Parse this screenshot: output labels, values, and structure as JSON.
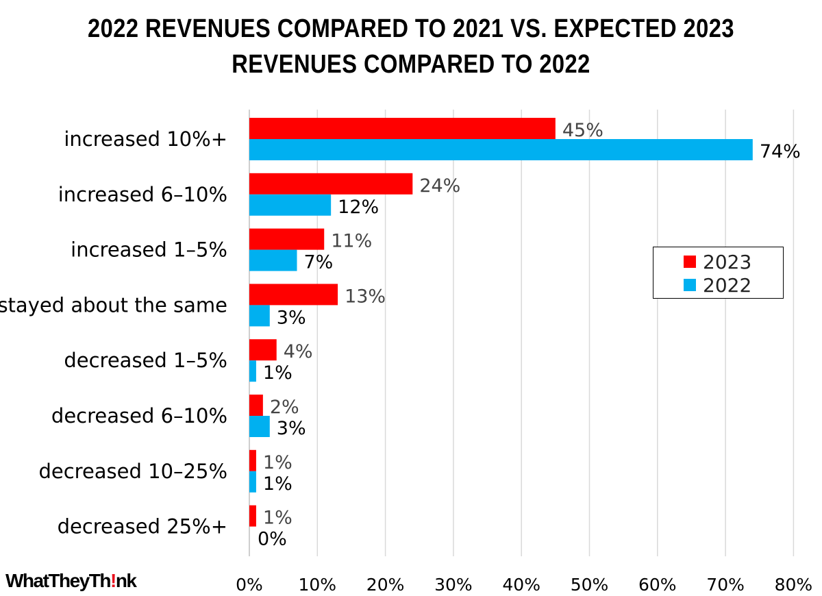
{
  "chart_data": {
    "type": "bar",
    "orientation": "horizontal",
    "title_lines": [
      "2022 REVENUES COMPARED TO 2021 VS. EXPECTED 2023",
      "REVENUES COMPARED TO 2022"
    ],
    "categories": [
      "increased 10%+",
      "increased 6-10%",
      "increased 1-5%",
      "stayed about the same",
      "decreased 1-5%",
      "decreased 6-10%",
      "decreased 10-25%",
      "decreased 25%+"
    ],
    "series": [
      {
        "name": "2023",
        "color": "#ff0000",
        "values": [
          45,
          24,
          11,
          13,
          4,
          2,
          1,
          1
        ],
        "labels": [
          "45%",
          "24%",
          "11%",
          "13%",
          "4%",
          "2%",
          "1%",
          "1%"
        ]
      },
      {
        "name": "2022",
        "color": "#00b0f0",
        "values": [
          74,
          12,
          7,
          3,
          1,
          3,
          1,
          0
        ],
        "labels": [
          "74%",
          "12%",
          "7%",
          "3%",
          "1%",
          "3%",
          "1%",
          "0%"
        ]
      }
    ],
    "xlim": [
      0,
      80
    ],
    "xticks": [
      "0%",
      "10%",
      "20%",
      "30%",
      "40%",
      "50%",
      "60%",
      "70%",
      "80%"
    ],
    "grid": "vertical",
    "legend": "right"
  },
  "logo": {
    "before": "WhatTheyTh",
    "mark": "!",
    "after": "nk"
  }
}
